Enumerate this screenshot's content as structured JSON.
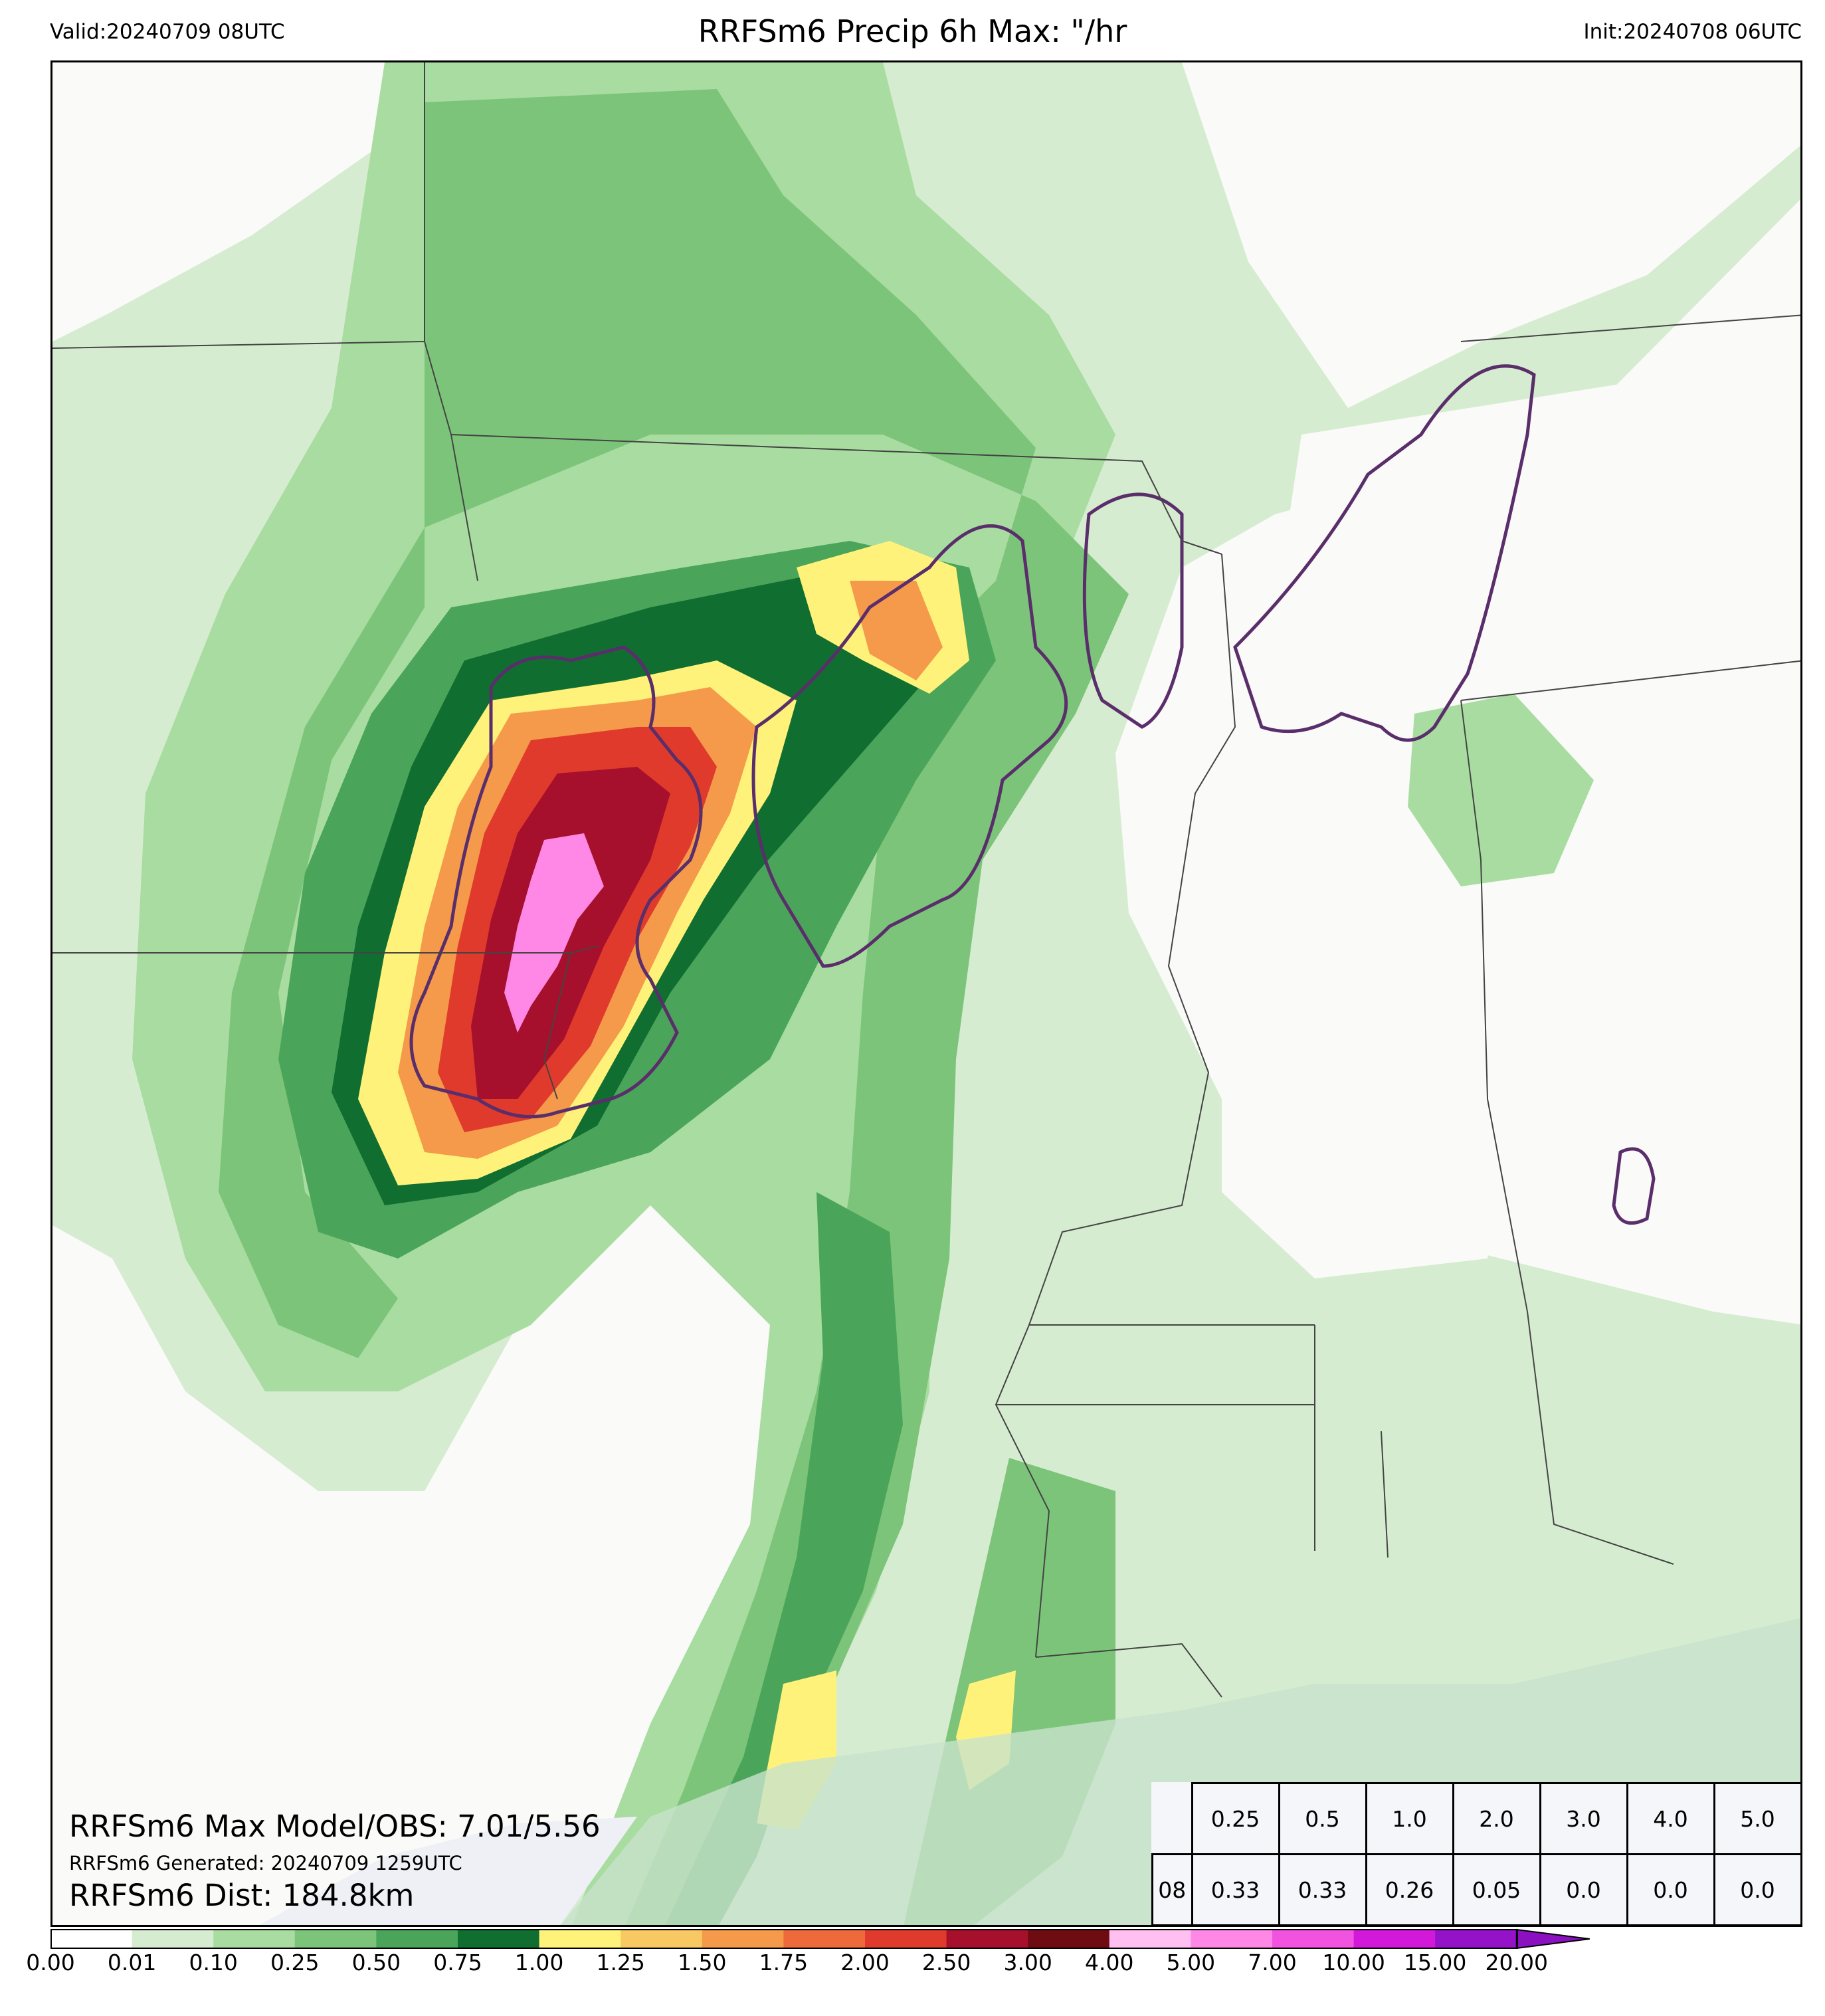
{
  "header": {
    "valid": "Valid:20240709 08UTC",
    "title": "RRFSm6 Precip 6h Max: \"/hr",
    "init": "Init:20240708 06UTC"
  },
  "annotations": {
    "max_model_obs": "RRFSm6 Max Model/OBS: 7.01/5.56",
    "generated": "RRFSm6 Generated: 20240709 1259UTC",
    "dist": "RRFSm6 Dist: 184.8km"
  },
  "stats_table": {
    "thresholds": [
      "0.25",
      "0.5",
      "1.0",
      "2.0",
      "3.0",
      "4.0",
      "5.0"
    ],
    "rows": [
      {
        "hour": "08",
        "values": [
          "0.33",
          "0.33",
          "0.26",
          "0.05",
          "0.0",
          "0.0",
          "0.0"
        ]
      }
    ]
  },
  "colorbar": {
    "labels": [
      "0.00",
      "0.01",
      "0.10",
      "0.25",
      "0.50",
      "0.75",
      "1.00",
      "1.25",
      "1.50",
      "1.75",
      "2.00",
      "2.50",
      "3.00",
      "4.00",
      "5.00",
      "7.00",
      "10.00",
      "15.00",
      "20.00"
    ],
    "colors": [
      "#ffffff",
      "#d6ecd0",
      "#a8dca0",
      "#7cc47a",
      "#4aa55a",
      "#106e30",
      "#fff27a",
      "#f8c862",
      "#f49a4a",
      "#ee6a3a",
      "#e03a2c",
      "#a6102c",
      "#6e0c12",
      "#ffbff0",
      "#ff88e6",
      "#f252e0",
      "#d218d8",
      "#9412c8"
    ],
    "extend_color": "#8a10c0"
  },
  "legend_colors": {
    "contour_outline": "#5a2e6a",
    "state_lines": "#444444",
    "water": "#c8e2cc"
  }
}
